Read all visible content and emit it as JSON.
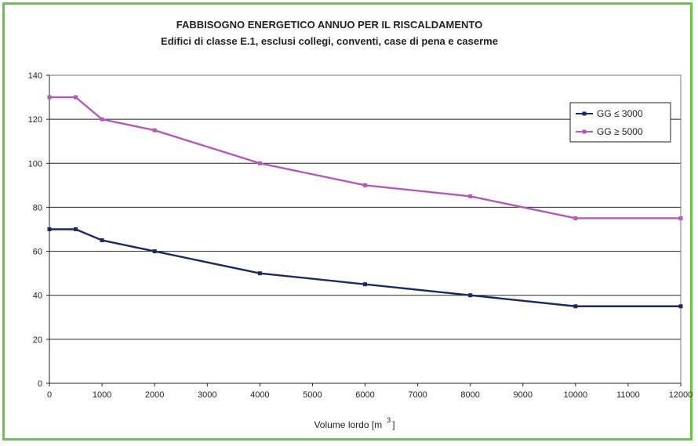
{
  "chart_data": {
    "type": "line",
    "title": "FABBISOGNO ENERGETICO ANNUO PER IL RISCALDAMENTO",
    "subtitle": "Edifici di classe E.1, esclusi collegi, conventi, case di pena e caserme",
    "xlabel": "Volume lordo [m",
    "xlabel_superscript": "3",
    "xlabel_close": "]",
    "ylabel": "",
    "xlim": [
      0,
      12000
    ],
    "ylim": [
      0,
      140
    ],
    "xticks": [
      0,
      1000,
      2000,
      3000,
      4000,
      5000,
      6000,
      7000,
      8000,
      9000,
      10000,
      11000,
      12000
    ],
    "yticks": [
      0,
      20,
      40,
      60,
      80,
      100,
      120,
      140
    ],
    "grid": "horizontal",
    "legend_position": "top-right",
    "series": [
      {
        "name": "GG ≤ 3000",
        "color": "#1f2a5c",
        "x": [
          0,
          500,
          1000,
          2000,
          4000,
          6000,
          8000,
          10000,
          12000
        ],
        "y": [
          70,
          70,
          65,
          60,
          50,
          45,
          40,
          35,
          35
        ]
      },
      {
        "name": "GG ≥ 5000",
        "color": "#b35ab8",
        "x": [
          0,
          500,
          1000,
          2000,
          4000,
          6000,
          8000,
          10000,
          12000
        ],
        "y": [
          130,
          130,
          120,
          115,
          100,
          90,
          85,
          75,
          75
        ]
      }
    ]
  }
}
